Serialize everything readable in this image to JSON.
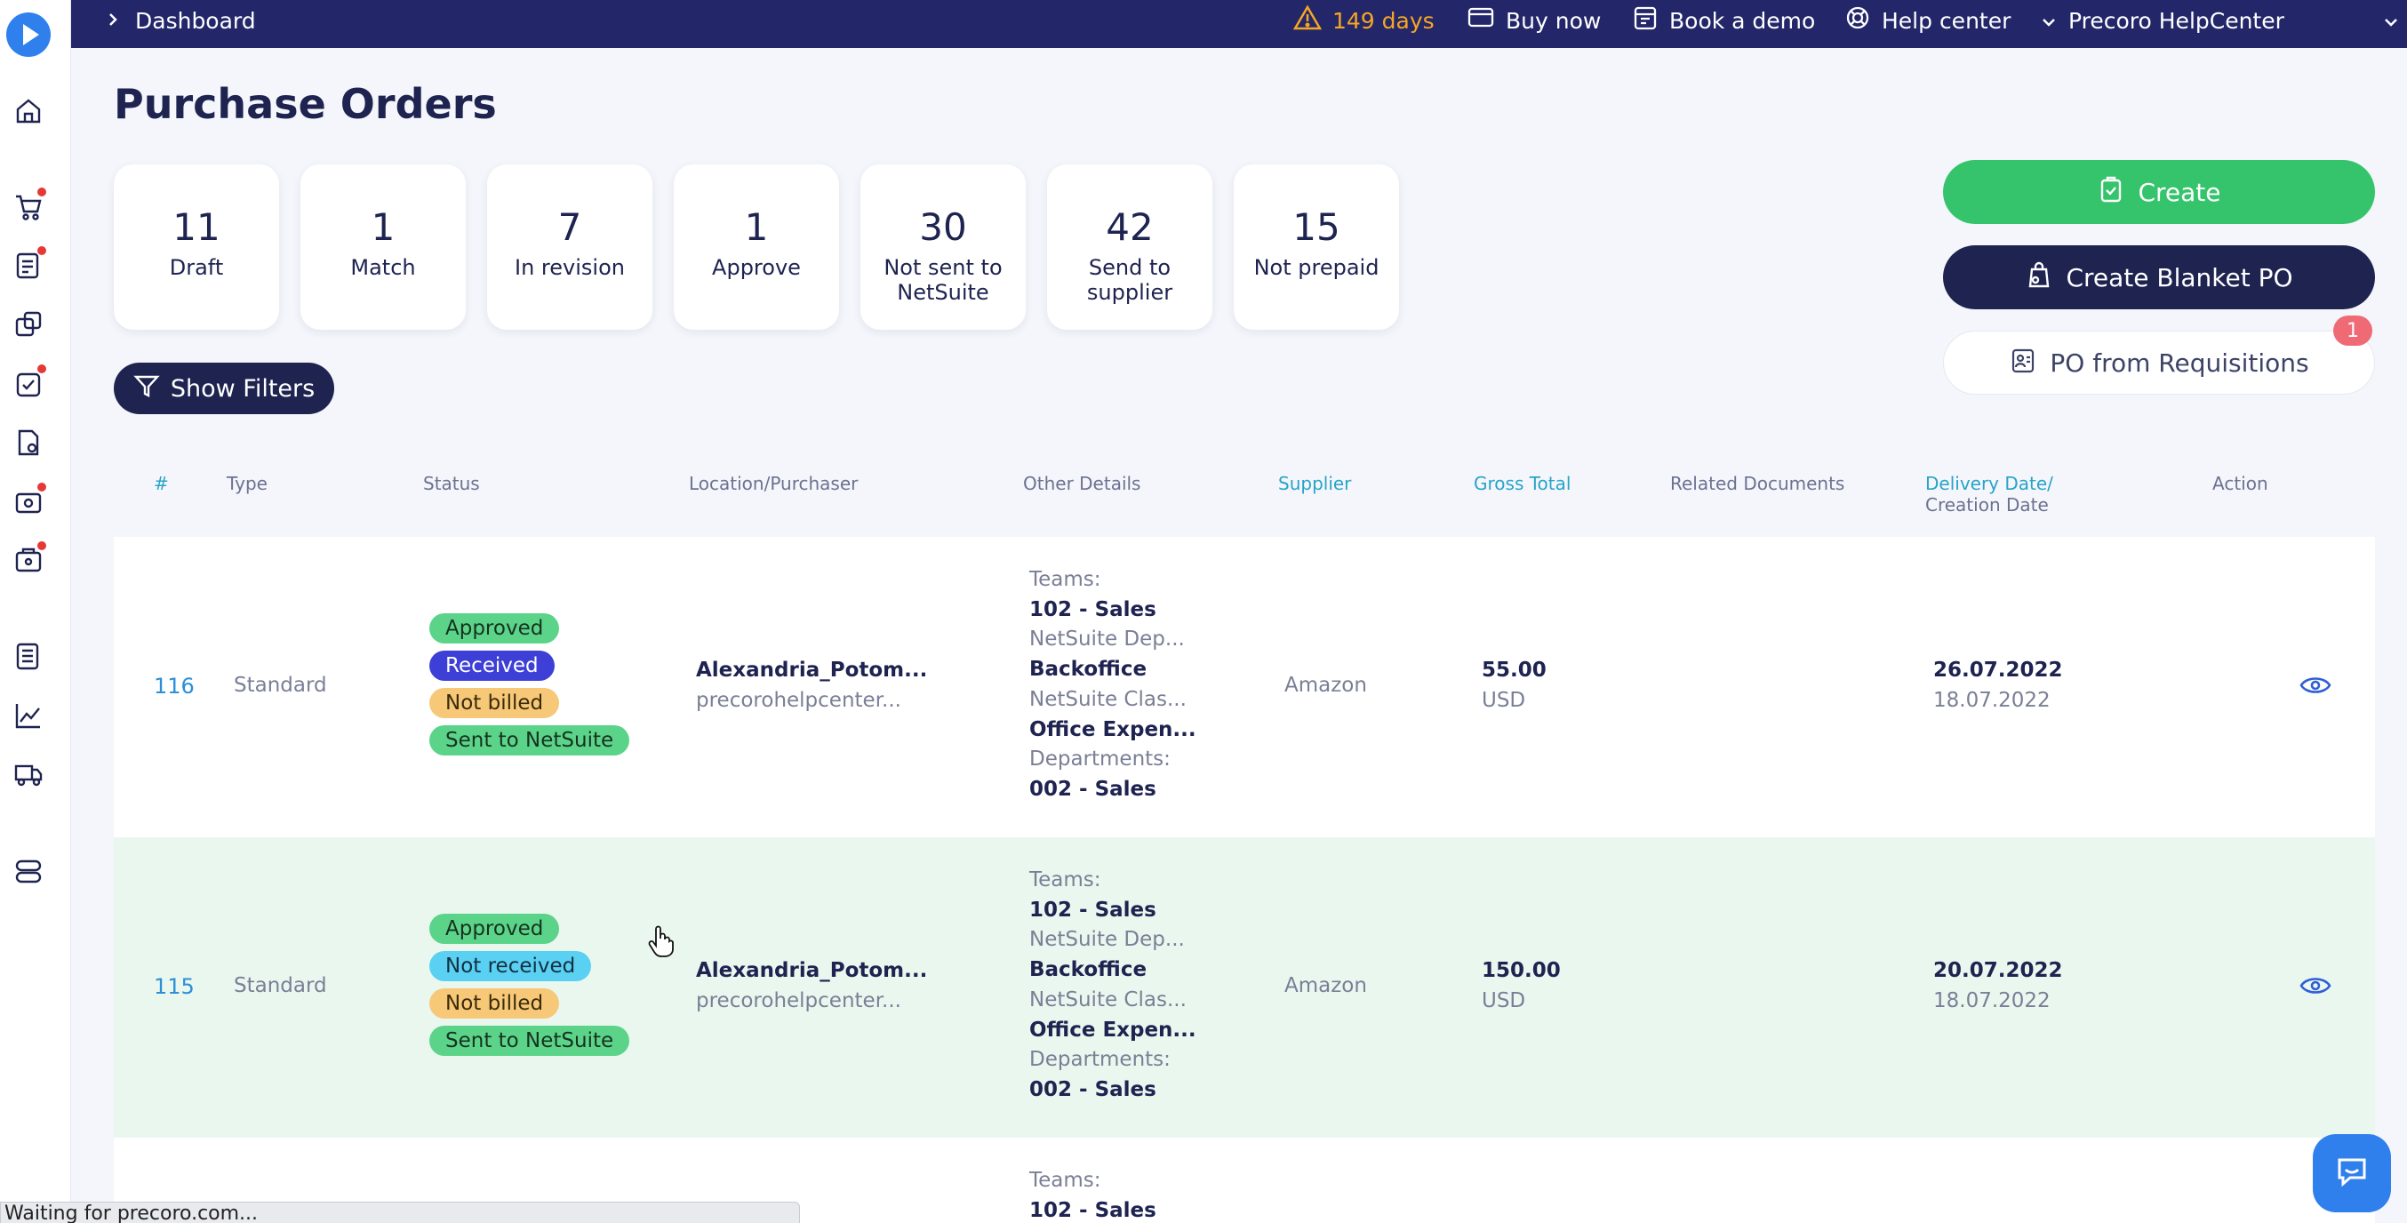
{
  "topbar": {
    "breadcrumb": "Dashboard",
    "trial": "149 days",
    "buy_now": "Buy now",
    "book_demo": "Book a demo",
    "help_center": "Help center",
    "company": "Precoro HelpCenter"
  },
  "page": {
    "title": "Purchase Orders"
  },
  "stats": [
    {
      "count": "11",
      "label": "Draft"
    },
    {
      "count": "1",
      "label": "Match"
    },
    {
      "count": "7",
      "label": "In revision"
    },
    {
      "count": "1",
      "label": "Approve"
    },
    {
      "count": "30",
      "label": "Not sent to NetSuite"
    },
    {
      "count": "42",
      "label": "Send to supplier"
    },
    {
      "count": "15",
      "label": "Not prepaid"
    }
  ],
  "actions": {
    "create": "Create",
    "create_blanket": "Create Blanket PO",
    "from_requisitions": "PO from Requisitions",
    "requisitions_badge": "1"
  },
  "filters": {
    "show_filters": "Show Filters"
  },
  "table": {
    "columns": {
      "num": "#",
      "type": "Type",
      "status": "Status",
      "location": "Location/Purchaser",
      "details": "Other Details",
      "supplier": "Supplier",
      "gross_total": "Gross Total",
      "related": "Related Documents",
      "delivery": "Delivery Date/",
      "creation": "Creation Date",
      "action": "Action"
    },
    "rows": [
      {
        "number": "116",
        "type": "Standard",
        "statuses": [
          "Approved",
          "Received",
          "Not billed",
          "Sent to NetSuite"
        ],
        "location": "Alexandria_Potom...",
        "purchaser": "precorohelpcenter...",
        "details": [
          "Teams:",
          "102 - Sales",
          "NetSuite Dep...",
          "Backoffice",
          "NetSuite Clas...",
          "Office Expen...",
          "Departments:",
          "002 - Sales"
        ],
        "supplier": "Amazon",
        "total": "55.00",
        "currency": "USD",
        "delivery_date": "26.07.2022",
        "creation_date": "18.07.2022"
      },
      {
        "number": "115",
        "type": "Standard",
        "statuses": [
          "Approved",
          "Not received",
          "Not billed",
          "Sent to NetSuite"
        ],
        "location": "Alexandria_Potom...",
        "purchaser": "precorohelpcenter...",
        "details": [
          "Teams:",
          "102 - Sales",
          "NetSuite Dep...",
          "Backoffice",
          "NetSuite Clas...",
          "Office Expen...",
          "Departments:",
          "002 - Sales"
        ],
        "supplier": "Amazon",
        "total": "150.00",
        "currency": "USD",
        "delivery_date": "20.07.2022",
        "creation_date": "18.07.2022"
      },
      {
        "details": [
          "Teams:",
          "102 - Sales"
        ]
      }
    ]
  },
  "browser": {
    "status": "Waiting for precoro.com..."
  },
  "colors": {
    "navy": "#23276a",
    "green": "#35c46c",
    "link": "#27a4c8",
    "warning": "#f5a623"
  }
}
